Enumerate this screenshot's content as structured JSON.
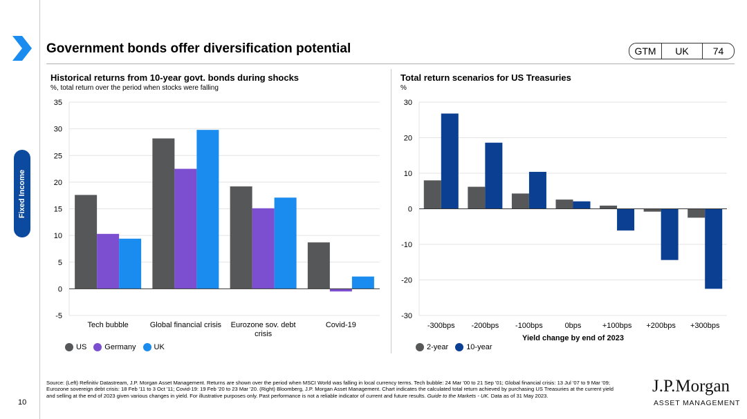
{
  "header": {
    "title": "Government bonds offer diversification potential",
    "badges": [
      "GTM",
      "UK",
      "74"
    ]
  },
  "sidebar": {
    "label": "Fixed Income"
  },
  "left_panel": {
    "title": "Historical returns from 10-year govt. bonds during shocks",
    "subtitle": "%, total return over the period when stocks were falling"
  },
  "right_panel": {
    "title": "Total return scenarios for US Treasuries",
    "subtitle": "%"
  },
  "colors": {
    "US": "#555759",
    "Germany": "#7b4fcf",
    "UK": "#1a8cf0",
    "2-year": "#555759",
    "10-year": "#0b3f91",
    "accent": "#1a8cf0",
    "pill": "#0b4a9e"
  },
  "chart_data": [
    {
      "type": "bar",
      "title": "Historical returns from 10-year govt. bonds during shocks",
      "ylabel": "%, total return over the period when stocks were falling",
      "categories": [
        "Tech bubble",
        "Global financial crisis",
        "Eurozone sov. debt crisis",
        "Covid-19"
      ],
      "series": [
        {
          "name": "US",
          "values": [
            17.6,
            28.2,
            19.2,
            8.7
          ]
        },
        {
          "name": "Germany",
          "values": [
            10.3,
            22.5,
            15.1,
            -0.5
          ]
        },
        {
          "name": "UK",
          "values": [
            9.4,
            29.8,
            17.1,
            2.3
          ]
        }
      ],
      "ylim": [
        -5,
        35
      ],
      "yticks": [
        -5,
        0,
        5,
        10,
        15,
        20,
        25,
        30,
        35
      ],
      "grid": true,
      "legend": "bottom-left"
    },
    {
      "type": "bar",
      "title": "Total return scenarios for US Treasuries",
      "ylabel": "%",
      "xlabel": "Yield change by end of 2023",
      "categories": [
        "-300bps",
        "-200bps",
        "-100bps",
        "0bps",
        "+100bps",
        "+200bps",
        "+300bps"
      ],
      "series": [
        {
          "name": "2-year",
          "values": [
            8.0,
            6.2,
            4.3,
            2.6,
            0.9,
            -0.8,
            -2.5
          ]
        },
        {
          "name": "10-year",
          "values": [
            26.8,
            18.6,
            10.4,
            2.1,
            -6.1,
            -14.4,
            -22.5
          ]
        }
      ],
      "ylim": [
        -30,
        30
      ],
      "yticks": [
        -30,
        -20,
        -10,
        0,
        10,
        20,
        30
      ],
      "grid": true,
      "legend": "bottom-left"
    }
  ],
  "source": {
    "text": "Source: (Left) Refinitiv Datastream, J.P. Morgan Asset Management. Returns are shown over the period when MSCI World was falling in local currency terms. Tech bubble: 24 Mar '00 to 21 Sep '01; Global financial crisis: 13 Jul '07 to 9 Mar '09; Eurozone sovereign debt crisis: 18 Feb '11 to 3 Oct '11; Covid-19: 19 Feb '20 to 23 Mar '20. (Right) Bloomberg, J.P. Morgan Asset Management. Chart indicates the calculated total return achieved by purchasing US Treasuries at the current yield and selling at the end of 2023 given various changes in yield. For illustrative purposes only. Past performance is not a reliable indicator of current and future results. ",
    "guide": "Guide to the Markets - UK",
    "date": ". Data as of 31 May 2023."
  },
  "footer": {
    "page_number": "10"
  },
  "logo": {
    "line1": "J.P.Morgan",
    "line2": "ASSET MANAGEMENT"
  }
}
